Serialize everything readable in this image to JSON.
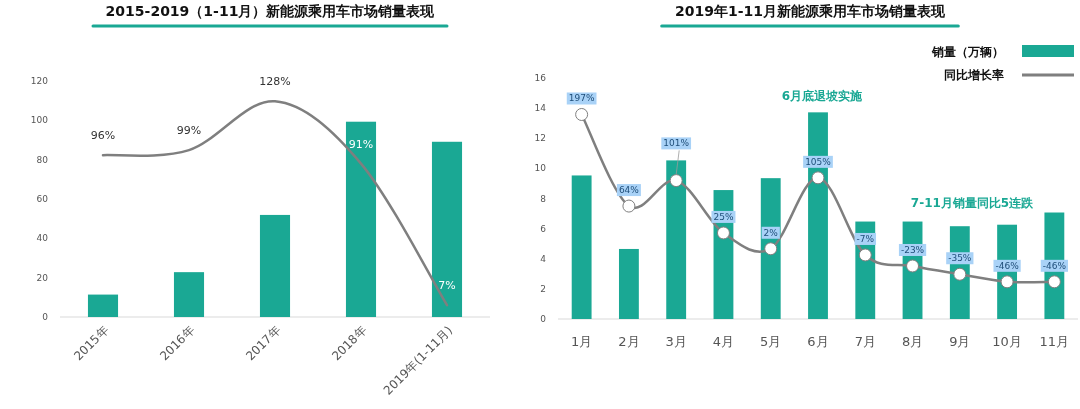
{
  "chart_data": [
    {
      "type": "bar",
      "title": "2015-2019（1-11月）新能源乘用车市场销量表现",
      "categories": [
        "2015年",
        "2016年",
        "2017年",
        "2018年",
        "2019年(1-11月)"
      ],
      "series": [
        {
          "color": "#1aa894",
          "values": [
            11.4,
            22.8,
            51.9,
            99.3,
            89.1
          ]
        },
        {
          "type": "line",
          "axis": "y2",
          "color": "#7f7f7f",
          "values": [
            96,
            99,
            128,
            91,
            7
          ],
          "value_labels": [
            "96%",
            "99%",
            "128%",
            "91%",
            "7%"
          ]
        }
      ],
      "ylim": [
        0,
        120
      ],
      "yticks": [
        0,
        20,
        40,
        60,
        80,
        100,
        120
      ]
    },
    {
      "type": "bar",
      "title": "2019年1-11月新能源乘用车市场销量表现",
      "categories": [
        "1月",
        "2月",
        "3月",
        "4月",
        "5月",
        "6月",
        "7月",
        "8月",
        "9月",
        "10月",
        "11月"
      ],
      "series": [
        {
          "name": "销量（万辆）",
          "color": "#1aa894",
          "values": [
            9.53,
            4.65,
            10.53,
            8.56,
            9.35,
            13.72,
            6.47,
            6.47,
            6.16,
            6.26,
            7.07
          ]
        },
        {
          "type": "line",
          "name": "同比增长率",
          "axis": "y2",
          "color": "#7f7f7f",
          "marker": "circle",
          "values": [
            197,
            64,
            101,
            25,
            2,
            105,
            -7,
            -23,
            -35,
            -46,
            -46
          ],
          "value_labels": [
            "197%",
            "64%",
            "101%",
            "25%",
            "2%",
            "105%",
            "-7%",
            "-23%",
            "-35%",
            "-46%",
            "-46%"
          ]
        }
      ],
      "ylim": [
        0,
        16
      ],
      "yticks": [
        0,
        2,
        4,
        6,
        8,
        10,
        12,
        14,
        16
      ],
      "legend": "top right",
      "annotations": [
        "6月底退坡实施",
        "7-11月销量同比5连跌"
      ]
    }
  ]
}
